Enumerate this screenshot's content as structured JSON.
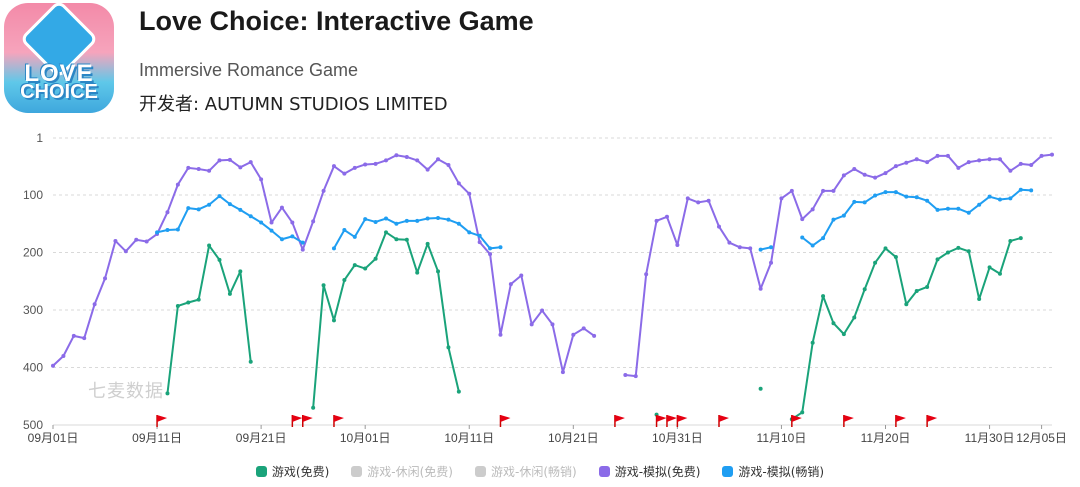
{
  "app": {
    "title": "Love Choice: Interactive Game",
    "subtitle": "Immersive Romance Game",
    "developer": "开发者: AUTUMN STUDIOS LIMITED",
    "icon_text_line1": "LOVE",
    "icon_text_line2": "CHOICE"
  },
  "watermark": "七麦数据",
  "chart_data": {
    "type": "line",
    "y_inverted": true,
    "ylim": [
      500,
      1
    ],
    "y_ticks": [
      1,
      100,
      200,
      300,
      400,
      500
    ],
    "x_ticks": [
      "09月01日",
      "09月11日",
      "09月21日",
      "10月01日",
      "10月11日",
      "10月21日",
      "10月31日",
      "11月10日",
      "11月20日",
      "11月30日",
      "12月05日"
    ],
    "x_tick_days": [
      0,
      10,
      20,
      30,
      40,
      50,
      60,
      70,
      80,
      90,
      95
    ],
    "grid": "horizontal-dashed",
    "legend_position": "bottom",
    "flag_days": [
      10,
      23,
      24,
      27,
      43,
      54,
      58,
      59,
      60,
      64,
      71,
      76,
      81,
      84
    ],
    "series": [
      {
        "name": "游戏(免费)",
        "color": "#1aa37a",
        "active": true,
        "points": [
          [
            11,
            445
          ],
          [
            12,
            293
          ],
          [
            13,
            287
          ],
          [
            14,
            282
          ],
          [
            15,
            188
          ],
          [
            16,
            213
          ],
          [
            17,
            272
          ],
          [
            18,
            233
          ],
          [
            19,
            390
          ],
          null,
          [
            25,
            470
          ],
          [
            26,
            257
          ],
          [
            27,
            318
          ],
          [
            28,
            248
          ],
          [
            29,
            222
          ],
          [
            30,
            228
          ],
          [
            31,
            211
          ],
          [
            32,
            165
          ],
          [
            33,
            177
          ],
          [
            34,
            178
          ],
          [
            35,
            235
          ],
          [
            36,
            185
          ],
          [
            37,
            233
          ],
          [
            38,
            365
          ],
          [
            39,
            442
          ],
          null,
          [
            58,
            482
          ],
          null,
          [
            68,
            437
          ],
          null,
          [
            71,
            490
          ],
          [
            72,
            478
          ],
          [
            73,
            357
          ],
          [
            74,
            276
          ],
          [
            75,
            323
          ],
          [
            76,
            342
          ],
          [
            77,
            313
          ],
          [
            78,
            264
          ],
          [
            79,
            218
          ],
          [
            80,
            193
          ],
          [
            81,
            208
          ],
          [
            82,
            290
          ],
          [
            83,
            267
          ],
          [
            84,
            260
          ],
          [
            85,
            212
          ],
          [
            86,
            200
          ],
          [
            87,
            192
          ],
          [
            88,
            198
          ],
          [
            89,
            281
          ],
          [
            90,
            226
          ],
          [
            91,
            237
          ],
          [
            92,
            180
          ],
          [
            93,
            175
          ]
        ]
      },
      {
        "name": "游戏-休闲(免费)",
        "color": "#cccccc",
        "active": false,
        "points": []
      },
      {
        "name": "游戏-休闲(畅销)",
        "color": "#cccccc",
        "active": false,
        "points": []
      },
      {
        "name": "游戏-模拟(免费)",
        "color": "#8b6be8",
        "active": true,
        "points": [
          [
            0,
            397
          ],
          [
            1,
            380
          ],
          [
            2,
            345
          ],
          [
            3,
            349
          ],
          [
            4,
            290
          ],
          [
            5,
            245
          ],
          [
            6,
            180
          ],
          [
            7,
            198
          ],
          [
            8,
            178
          ],
          [
            9,
            181
          ],
          [
            10,
            168
          ],
          [
            11,
            130
          ],
          [
            12,
            82
          ],
          [
            13,
            53
          ],
          [
            14,
            55
          ],
          [
            15,
            58
          ],
          [
            16,
            40
          ],
          [
            17,
            39
          ],
          [
            18,
            52
          ],
          [
            19,
            43
          ],
          [
            20,
            73
          ],
          [
            21,
            148
          ],
          [
            22,
            122
          ],
          [
            23,
            148
          ],
          [
            24,
            195
          ],
          [
            25,
            146
          ],
          [
            26,
            93
          ],
          [
            27,
            50
          ],
          [
            28,
            63
          ],
          [
            29,
            53
          ],
          [
            30,
            47
          ],
          [
            31,
            46
          ],
          [
            32,
            40
          ],
          [
            33,
            31
          ],
          [
            34,
            34
          ],
          [
            35,
            40
          ],
          [
            36,
            56
          ],
          [
            37,
            38
          ],
          [
            38,
            48
          ],
          [
            39,
            80
          ],
          [
            40,
            98
          ],
          [
            41,
            182
          ],
          [
            42,
            203
          ],
          [
            43,
            343
          ],
          [
            44,
            255
          ],
          [
            45,
            240
          ],
          [
            46,
            325
          ],
          [
            47,
            301
          ],
          [
            48,
            325
          ],
          [
            49,
            408
          ],
          [
            50,
            343
          ],
          [
            51,
            332
          ],
          [
            52,
            345
          ],
          null,
          [
            55,
            413
          ],
          [
            56,
            415
          ],
          [
            57,
            238
          ],
          [
            58,
            145
          ],
          [
            59,
            138
          ],
          [
            60,
            187
          ],
          [
            61,
            106
          ],
          [
            62,
            113
          ],
          [
            63,
            110
          ],
          [
            64,
            155
          ],
          [
            65,
            183
          ],
          [
            66,
            191
          ],
          [
            67,
            193
          ],
          [
            68,
            263
          ],
          [
            69,
            218
          ],
          [
            70,
            106
          ],
          [
            71,
            93
          ],
          [
            72,
            142
          ],
          [
            73,
            125
          ],
          [
            74,
            93
          ],
          [
            75,
            93
          ],
          [
            76,
            66
          ],
          [
            77,
            55
          ],
          [
            78,
            65
          ],
          [
            79,
            70
          ],
          [
            80,
            62
          ],
          [
            81,
            50
          ],
          [
            82,
            44
          ],
          [
            83,
            38
          ],
          [
            84,
            43
          ],
          [
            85,
            32
          ],
          [
            86,
            32
          ],
          [
            87,
            53
          ],
          [
            88,
            43
          ],
          [
            89,
            40
          ],
          [
            90,
            38
          ],
          [
            91,
            38
          ],
          [
            92,
            58
          ],
          [
            93,
            46
          ],
          [
            94,
            48
          ],
          [
            95,
            32
          ],
          [
            96,
            30
          ]
        ]
      },
      {
        "name": "游戏-模拟(畅销)",
        "color": "#1f9ef2",
        "active": true,
        "points": [
          [
            10,
            165
          ],
          [
            11,
            161
          ],
          [
            12,
            160
          ],
          [
            13,
            123
          ],
          [
            14,
            125
          ],
          [
            15,
            117
          ],
          [
            16,
            102
          ],
          [
            17,
            116
          ],
          [
            18,
            126
          ],
          [
            19,
            137
          ],
          [
            20,
            148
          ],
          [
            21,
            162
          ],
          [
            22,
            177
          ],
          [
            23,
            172
          ],
          [
            24,
            183
          ],
          null,
          [
            27,
            193
          ],
          [
            28,
            161
          ],
          [
            29,
            173
          ],
          [
            30,
            142
          ],
          [
            31,
            147
          ],
          [
            32,
            141
          ],
          [
            33,
            150
          ],
          [
            34,
            145
          ],
          [
            35,
            145
          ],
          [
            36,
            141
          ],
          [
            37,
            140
          ],
          [
            38,
            143
          ],
          [
            39,
            150
          ],
          [
            40,
            165
          ],
          [
            41,
            171
          ],
          [
            42,
            193
          ],
          [
            43,
            191
          ],
          null,
          [
            68,
            195
          ],
          [
            69,
            191
          ],
          null,
          [
            72,
            174
          ],
          [
            73,
            188
          ],
          [
            74,
            175
          ],
          [
            75,
            143
          ],
          [
            76,
            136
          ],
          [
            77,
            112
          ],
          [
            78,
            113
          ],
          [
            79,
            101
          ],
          [
            80,
            95
          ],
          [
            81,
            95
          ],
          [
            82,
            103
          ],
          [
            83,
            104
          ],
          [
            84,
            110
          ],
          [
            85,
            126
          ],
          [
            86,
            124
          ],
          [
            87,
            124
          ],
          [
            88,
            131
          ],
          [
            89,
            117
          ],
          [
            90,
            103
          ],
          [
            91,
            108
          ],
          [
            92,
            106
          ],
          [
            93,
            91
          ],
          [
            94,
            92
          ]
        ]
      }
    ]
  }
}
